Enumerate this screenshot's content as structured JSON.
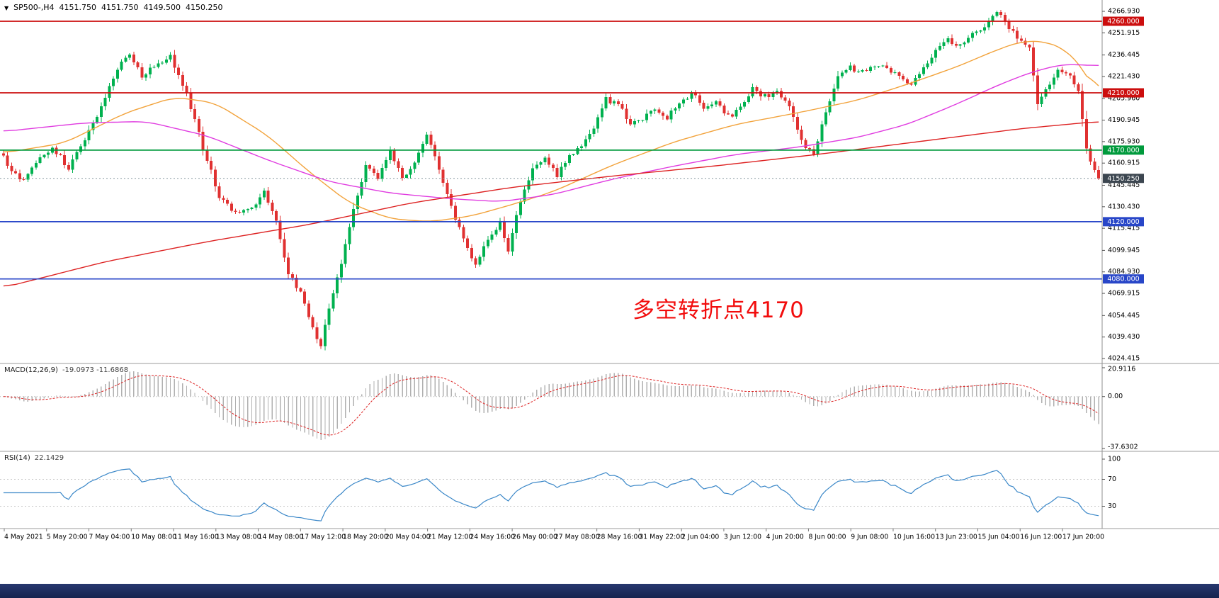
{
  "header": {
    "arrow_icon": "▼",
    "symbol": "SP500-,H4",
    "open": "4151.750",
    "high": "4151.750",
    "low": "4149.500",
    "close": "4150.250"
  },
  "annotation": {
    "text": "多空转折点4170",
    "color": "#f20d0d"
  },
  "panes": {
    "macd": {
      "name": "MACD(12,26,9)",
      "values": "-19.0973 -11.6868"
    },
    "rsi": {
      "name": "RSI(14)",
      "values": "22.1429"
    }
  },
  "chart_data": {
    "type": "candlestick",
    "symbol": "SP500",
    "timeframe": "H4",
    "n_candles": 270,
    "up_color": "#00b14f",
    "down_color": "#e03131",
    "price_path": [
      [
        0,
        4165
      ],
      [
        4,
        4148
      ],
      [
        8,
        4160
      ],
      [
        12,
        4172
      ],
      [
        16,
        4158
      ],
      [
        20,
        4178
      ],
      [
        24,
        4200
      ],
      [
        28,
        4228
      ],
      [
        31,
        4238
      ],
      [
        34,
        4222
      ],
      [
        38,
        4230
      ],
      [
        41,
        4236
      ],
      [
        45,
        4210
      ],
      [
        49,
        4172
      ],
      [
        53,
        4138
      ],
      [
        57,
        4126
      ],
      [
        61,
        4130
      ],
      [
        64,
        4140
      ],
      [
        67,
        4120
      ],
      [
        70,
        4085
      ],
      [
        73,
        4070
      ],
      [
        76,
        4048
      ],
      [
        78,
        4032
      ],
      [
        80,
        4060
      ],
      [
        83,
        4092
      ],
      [
        86,
        4130
      ],
      [
        89,
        4158
      ],
      [
        92,
        4150
      ],
      [
        95,
        4170
      ],
      [
        98,
        4152
      ],
      [
        101,
        4160
      ],
      [
        104,
        4180
      ],
      [
        107,
        4158
      ],
      [
        110,
        4130
      ],
      [
        113,
        4110
      ],
      [
        116,
        4088
      ],
      [
        119,
        4108
      ],
      [
        122,
        4118
      ],
      [
        124,
        4100
      ],
      [
        127,
        4135
      ],
      [
        130,
        4158
      ],
      [
        133,
        4165
      ],
      [
        136,
        4152
      ],
      [
        139,
        4165
      ],
      [
        142,
        4172
      ],
      [
        145,
        4185
      ],
      [
        148,
        4205
      ],
      [
        151,
        4202
      ],
      [
        154,
        4188
      ],
      [
        157,
        4192
      ],
      [
        160,
        4200
      ],
      [
        163,
        4193
      ],
      [
        166,
        4203
      ],
      [
        169,
        4210
      ],
      [
        172,
        4199
      ],
      [
        175,
        4206
      ],
      [
        178,
        4193
      ],
      [
        181,
        4200
      ],
      [
        184,
        4214
      ],
      [
        187,
        4207
      ],
      [
        190,
        4212
      ],
      [
        193,
        4200
      ],
      [
        196,
        4176
      ],
      [
        199,
        4168
      ],
      [
        202,
        4198
      ],
      [
        205,
        4222
      ],
      [
        208,
        4228
      ],
      [
        211,
        4224
      ],
      [
        214,
        4230
      ],
      [
        217,
        4228
      ],
      [
        220,
        4220
      ],
      [
        223,
        4214
      ],
      [
        226,
        4228
      ],
      [
        229,
        4240
      ],
      [
        232,
        4246
      ],
      [
        235,
        4243
      ],
      [
        238,
        4250
      ],
      [
        241,
        4258
      ],
      [
        244,
        4266
      ],
      [
        246,
        4259
      ],
      [
        249,
        4248
      ],
      [
        252,
        4242
      ],
      [
        254,
        4200
      ],
      [
        256,
        4212
      ],
      [
        258,
        4222
      ],
      [
        260,
        4226
      ],
      [
        262,
        4222
      ],
      [
        264,
        4212
      ],
      [
        266,
        4172
      ],
      [
        268,
        4156
      ],
      [
        269,
        4150.25
      ]
    ],
    "moving_averages": [
      {
        "name": "fast-ma-orange",
        "color": "#f2a33c",
        "path": [
          [
            0,
            4168
          ],
          [
            15,
            4175
          ],
          [
            30,
            4196
          ],
          [
            42,
            4207
          ],
          [
            52,
            4203
          ],
          [
            65,
            4180
          ],
          [
            75,
            4155
          ],
          [
            85,
            4133
          ],
          [
            95,
            4122
          ],
          [
            105,
            4120
          ],
          [
            115,
            4124
          ],
          [
            125,
            4132
          ],
          [
            135,
            4141
          ],
          [
            150,
            4160
          ],
          [
            165,
            4176
          ],
          [
            180,
            4188
          ],
          [
            195,
            4196
          ],
          [
            210,
            4205
          ],
          [
            222,
            4216
          ],
          [
            234,
            4228
          ],
          [
            244,
            4240
          ],
          [
            250,
            4246
          ],
          [
            256,
            4246
          ],
          [
            261,
            4240
          ],
          [
            265,
            4228
          ],
          [
            269,
            4207
          ]
        ]
      },
      {
        "name": "mid-ma-magenta",
        "color": "#e03ce0",
        "path": [
          [
            0,
            4183
          ],
          [
            20,
            4189
          ],
          [
            35,
            4190
          ],
          [
            50,
            4180
          ],
          [
            65,
            4163
          ],
          [
            80,
            4148
          ],
          [
            95,
            4140
          ],
          [
            110,
            4136
          ],
          [
            122,
            4134
          ],
          [
            135,
            4139
          ],
          [
            150,
            4150
          ],
          [
            165,
            4159
          ],
          [
            180,
            4167
          ],
          [
            195,
            4172
          ],
          [
            210,
            4179
          ],
          [
            222,
            4188
          ],
          [
            234,
            4202
          ],
          [
            244,
            4215
          ],
          [
            252,
            4224
          ],
          [
            260,
            4230
          ],
          [
            269,
            4229
          ]
        ]
      },
      {
        "name": "slow-ma-red",
        "color": "#dd2222",
        "path": [
          [
            0,
            4074
          ],
          [
            25,
            4092
          ],
          [
            50,
            4106
          ],
          [
            75,
            4118
          ],
          [
            100,
            4133
          ],
          [
            125,
            4144
          ],
          [
            150,
            4152
          ],
          [
            175,
            4159
          ],
          [
            200,
            4167
          ],
          [
            225,
            4176
          ],
          [
            250,
            4185
          ],
          [
            269,
            4190
          ]
        ]
      }
    ],
    "horizontal_lines": [
      {
        "price": 4260.0,
        "color": "#cc0e0e",
        "label": "4260.000"
      },
      {
        "price": 4210.0,
        "color": "#cc0e0e",
        "label": "4210.000"
      },
      {
        "price": 4170.0,
        "color": "#009a3c",
        "label": "4170.000"
      },
      {
        "price": 4120.0,
        "color": "#2846c8",
        "label": "4120.000"
      },
      {
        "price": 4080.0,
        "color": "#2846c8",
        "label": "4080.000"
      }
    ],
    "current_price": {
      "value": 4150.25,
      "label": "4150.250",
      "badge": "#3c4650"
    },
    "y_ticks": [
      4266.93,
      4251.915,
      4236.445,
      4221.43,
      4205.96,
      4190.945,
      4175.93,
      4160.915,
      4145.445,
      4130.43,
      4115.415,
      4099.945,
      4084.93,
      4069.915,
      4054.445,
      4039.43,
      4024.415
    ],
    "x_labels": [
      "4 May 2021",
      "5 May 20:00",
      "7 May 04:00",
      "10 May 08:00",
      "11 May 16:00",
      "13 May 08:00",
      "14 May 08:00",
      "17 May 12:00",
      "18 May 20:00",
      "20 May 04:00",
      "21 May 12:00",
      "24 May 16:00",
      "26 May 00:00",
      "27 May 08:00",
      "28 May 16:00",
      "31 May 22:00",
      "2 Jun 04:00",
      "3 Jun 12:00",
      "4 Jun 20:00",
      "8 Jun 00:00",
      "9 Jun 08:00",
      "10 Jun 16:00",
      "13 Jun 23:00",
      "15 Jun 04:00",
      "16 Jun 12:00",
      "17 Jun 20:00"
    ],
    "macd": {
      "params": "12,26,9",
      "value": -19.0973,
      "signal": -11.6868,
      "hist_color": "#b0b0b0",
      "signal_color": "#dd2222",
      "range": [
        -37.6302,
        20.9116
      ],
      "ticks": [
        {
          "v": 20.9116,
          "t": "20.9116"
        },
        {
          "v": 0,
          "t": "0.00"
        },
        {
          "v": -37.6302,
          "t": "-37.6302"
        }
      ]
    },
    "rsi": {
      "params": "14",
      "value": 22.1429,
      "color": "#3a87c8",
      "levels": [
        70,
        30
      ],
      "ticks": [
        {
          "v": 100,
          "t": "100"
        },
        {
          "v": 70,
          "t": "70"
        },
        {
          "v": 30,
          "t": "30"
        }
      ]
    }
  }
}
